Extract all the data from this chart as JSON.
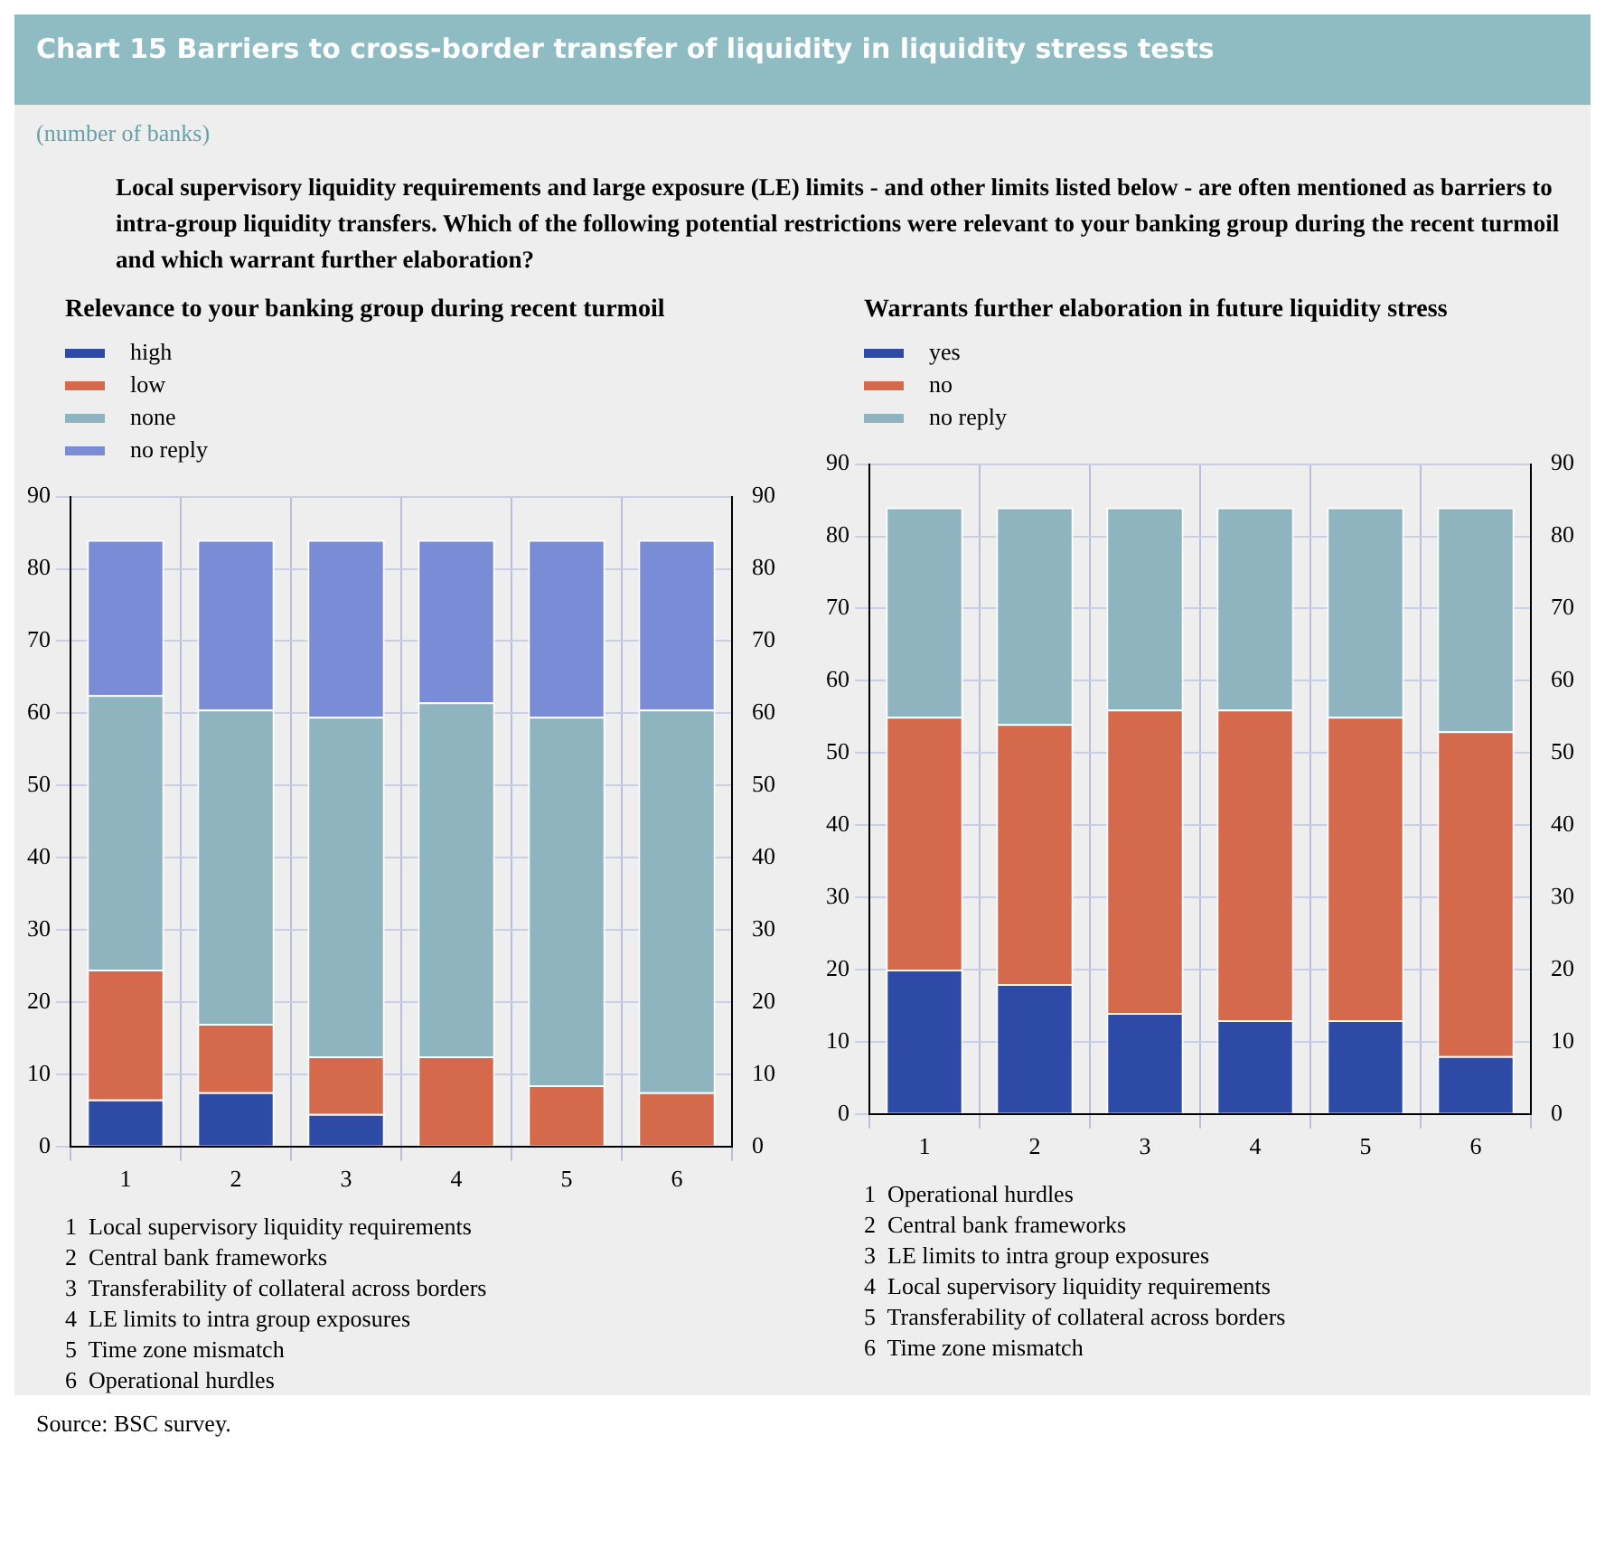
{
  "chart_data": [
    {
      "type": "other",
      "title": "Chart 15 Barriers to cross-border transfer of liquidity in liquidity stress tests",
      "subtitle": "(number of banks)",
      "annotations": [
        "Local supervisory liquidity requirements and large exposure (LE) limits - and other limits listed below - are often mentioned as barriers to intra-group liquidity transfers. Which of the following potential restrictions were relevant to your banking group during the recent turmoil and which warrant further elaboration?"
      ]
    },
    {
      "type": "bar",
      "title": "Relevance to your banking group during recent turmoil",
      "stacked": true,
      "legend": "top left",
      "grid": true,
      "categories": [
        "1",
        "2",
        "3",
        "4",
        "5",
        "6"
      ],
      "series": [
        {
          "name": "high",
          "color": "#2c4aa6",
          "values": [
            6.5,
            7.5,
            4.5,
            0,
            0,
            0
          ]
        },
        {
          "name": "low",
          "color": "#d5694b",
          "values": [
            18,
            9.5,
            8,
            12.5,
            8.5,
            7.5
          ]
        },
        {
          "name": "none",
          "color": "#8db4bf",
          "values": [
            38,
            43.5,
            47,
            49,
            51,
            53
          ]
        },
        {
          "name": "no reply",
          "color": "#7b8cd6",
          "values": [
            21.5,
            23.5,
            24.5,
            22.5,
            24.5,
            23.5
          ]
        }
      ],
      "ylim": [
        0,
        90
      ],
      "yticks": [
        0,
        10,
        20,
        30,
        40,
        50,
        60,
        70,
        80,
        90
      ],
      "y2lim": [
        0,
        90
      ],
      "y2ticks": [
        0,
        10,
        20,
        30,
        40,
        50,
        60,
        70,
        80,
        90
      ],
      "annotations": [
        "1  Local supervisory liquidity requirements",
        "2  Central bank frameworks",
        "3  Transferability of collateral across borders",
        "4  LE limits to intra group exposures",
        "5  Time zone mismatch",
        "6  Operational hurdles"
      ]
    },
    {
      "type": "bar",
      "title": "Warrants further elaboration in future liquidity stress",
      "stacked": true,
      "legend": "top left",
      "grid": true,
      "categories": [
        "1",
        "2",
        "3",
        "4",
        "5",
        "6"
      ],
      "series": [
        {
          "name": "yes",
          "color": "#2c4aa6",
          "values": [
            20,
            18,
            14,
            13,
            13,
            8
          ]
        },
        {
          "name": "no",
          "color": "#d5694b",
          "values": [
            35,
            36,
            42,
            43,
            42,
            45
          ]
        },
        {
          "name": "no reply",
          "color": "#8db4bf",
          "values": [
            29,
            30,
            28,
            28,
            29,
            31
          ]
        }
      ],
      "ylim": [
        0,
        90
      ],
      "yticks": [
        0,
        10,
        20,
        30,
        40,
        50,
        60,
        70,
        80,
        90
      ],
      "y2lim": [
        0,
        90
      ],
      "y2ticks": [
        0,
        10,
        20,
        30,
        40,
        50,
        60,
        70,
        80,
        90
      ],
      "annotations": [
        "1  Operational hurdles",
        "2  Central bank frameworks",
        "3  LE limits to intra group exposures",
        "4  Local supervisory liquidity requirements",
        "5  Transferability of collateral across borders",
        "6  Time zone mismatch"
      ]
    },
    {
      "type": "other",
      "annotations": [
        "Source: BSC survey."
      ]
    }
  ]
}
